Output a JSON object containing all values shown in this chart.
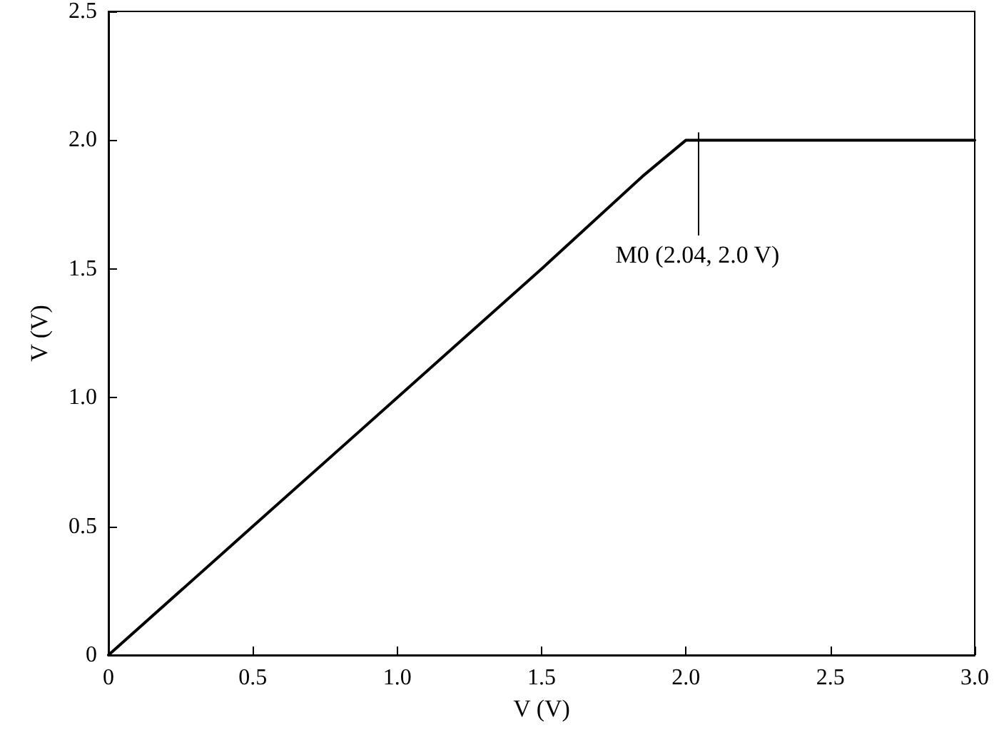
{
  "chart_data": {
    "type": "line",
    "xlabel": "V (V)",
    "ylabel": "V (V)",
    "x": [
      0,
      0.5,
      1.0,
      1.5,
      1.85,
      2.0,
      2.04,
      2.5,
      3.0
    ],
    "series": [
      {
        "color": "#000000",
        "values": [
          0,
          0.5,
          1.0,
          1.5,
          1.86,
          2.0,
          2.0,
          2.0,
          2.0
        ]
      }
    ],
    "xlim": [
      0,
      3.0
    ],
    "ylim": [
      0,
      2.5
    ],
    "xticks": [
      0,
      0.5,
      {
        "value": 1,
        "label": "1.0"
      },
      1.5,
      {
        "value": 2,
        "label": "2.0"
      },
      2.5,
      {
        "value": 3,
        "label": "3.0"
      }
    ],
    "yticks": [
      0,
      0.5,
      {
        "value": 1,
        "label": "1.0"
      },
      1.5,
      {
        "value": 2,
        "label": "2.0"
      },
      2.5
    ],
    "annotations": [
      {
        "text": "M0 (2.04, 2.0 V)",
        "x": 2.04,
        "y": 2.0
      }
    ],
    "grid": false,
    "marker": "none",
    "line_style": "solid"
  }
}
